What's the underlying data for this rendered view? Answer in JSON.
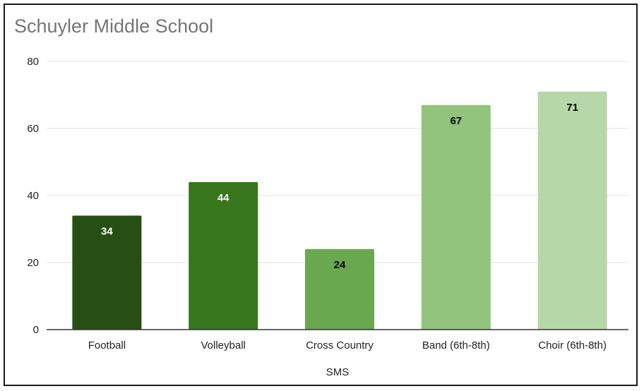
{
  "chart_data": {
    "type": "bar",
    "title": "Schuyler Middle School",
    "xlabel": "SMS",
    "ylabel": "",
    "categories": [
      "Football",
      "Volleyball",
      "Cross Country",
      "Band (6th-8th)",
      "Choir (6th-8th)"
    ],
    "values": [
      34,
      44,
      24,
      67,
      71
    ],
    "data_labels": [
      "34",
      "44",
      "24",
      "67",
      "71"
    ],
    "ylim": [
      0,
      80
    ],
    "yticks": [
      "0",
      "20",
      "40",
      "60",
      "80"
    ],
    "grid": true,
    "legend": "none",
    "bar_colors": [
      "#274e13",
      "#38761d",
      "#6aa84f",
      "#93c47d",
      "#b6d7a8"
    ],
    "label_colors": [
      "#ffffff",
      "#ffffff",
      "#000000",
      "#000000",
      "#000000"
    ],
    "grid_color": "#e0e0e0",
    "axis_color": "#333333"
  }
}
